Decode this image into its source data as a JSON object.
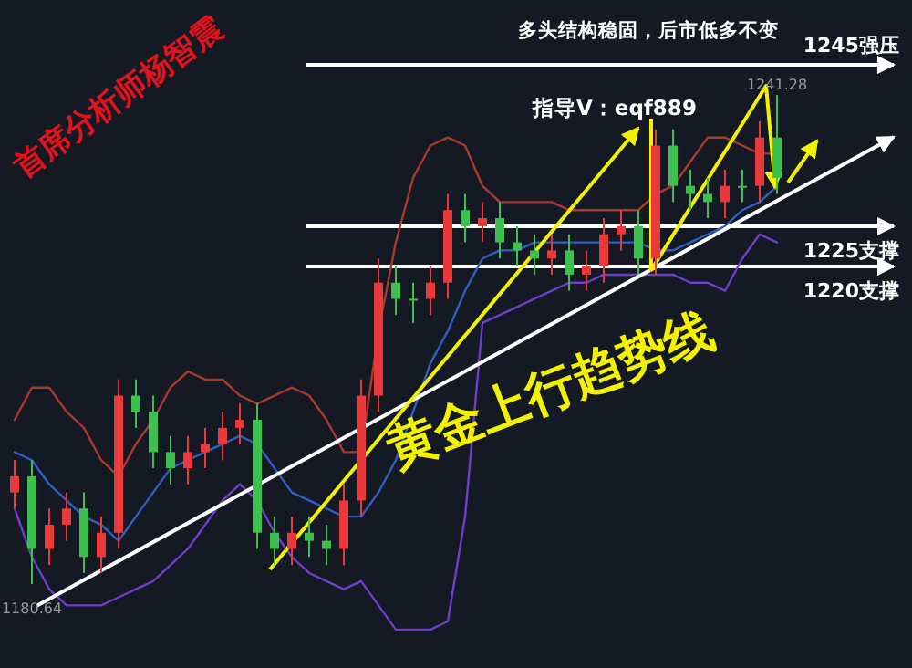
{
  "chart_data": {
    "type": "candlestick",
    "title": "多头结构稳固，后市低多不变",
    "subtitle": "指导V：eqf889",
    "categories": [
      null,
      null,
      null,
      null,
      null,
      null,
      null,
      null,
      null,
      null,
      null,
      null,
      null,
      null,
      null,
      null,
      null,
      null,
      null,
      null,
      null,
      null,
      null,
      null,
      null,
      null,
      null,
      null,
      null,
      null,
      null,
      null,
      null,
      null,
      null,
      null,
      null,
      null,
      null,
      null,
      null,
      null,
      null,
      null,
      null
    ],
    "ohlc": [
      [
        1192,
        1196,
        1190,
        1194
      ],
      [
        1194,
        1196,
        1180.64,
        1185
      ],
      [
        1185,
        1190,
        1183,
        1188
      ],
      [
        1188,
        1192,
        1186,
        1190
      ],
      [
        1190,
        1192,
        1182,
        1184
      ],
      [
        1184,
        1189,
        1182,
        1187
      ],
      [
        1187,
        1206,
        1185,
        1204
      ],
      [
        1204,
        1206,
        1200,
        1202
      ],
      [
        1202,
        1204,
        1195,
        1197
      ],
      [
        1197,
        1199,
        1193,
        1195
      ],
      [
        1195,
        1199,
        1193,
        1197
      ],
      [
        1197,
        1200,
        1195,
        1198
      ],
      [
        1198,
        1202,
        1196,
        1200
      ],
      [
        1200,
        1203,
        1198,
        1201
      ],
      [
        1201,
        1203,
        1185,
        1187
      ],
      [
        1187,
        1189,
        1183,
        1185
      ],
      [
        1185,
        1189,
        1183,
        1187
      ],
      [
        1187,
        1189,
        1184,
        1186
      ],
      [
        1186,
        1188,
        1183,
        1185
      ],
      [
        1185,
        1193,
        1183,
        1191
      ],
      [
        1191,
        1206,
        1189,
        1204
      ],
      [
        1204,
        1221,
        1202,
        1218
      ],
      [
        1218,
        1220,
        1214,
        1216
      ],
      [
        1216,
        1218,
        1213,
        1216
      ],
      [
        1216,
        1220,
        1214,
        1218
      ],
      [
        1218,
        1229,
        1216,
        1227
      ],
      [
        1227,
        1229,
        1223,
        1225
      ],
      [
        1225,
        1228,
        1223,
        1226
      ],
      [
        1226,
        1228,
        1221,
        1223
      ],
      [
        1223,
        1225,
        1220,
        1222
      ],
      [
        1222,
        1224,
        1219,
        1221
      ],
      [
        1221,
        1224,
        1219,
        1222
      ],
      [
        1222,
        1224,
        1217,
        1219
      ],
      [
        1219,
        1222,
        1217,
        1220
      ],
      [
        1220,
        1226,
        1218,
        1224
      ],
      [
        1224,
        1227,
        1222,
        1225
      ],
      [
        1225,
        1227,
        1219,
        1221
      ],
      [
        1221,
        1237,
        1219,
        1235
      ],
      [
        1235,
        1237,
        1228,
        1230
      ],
      [
        1230,
        1232,
        1227,
        1229
      ],
      [
        1229,
        1231,
        1226,
        1228
      ],
      [
        1228,
        1232,
        1226,
        1230
      ],
      [
        1230,
        1232,
        1228,
        1230
      ],
      [
        1230,
        1238,
        1228,
        1236
      ],
      [
        1236,
        1241.28,
        1229,
        1231
      ]
    ],
    "colors": [
      "#e8393b",
      "#3fbf4f",
      "#e8393b",
      "#e8393b",
      "#3fbf4f",
      "#e8393b",
      "#e8393b",
      "#3fbf4f",
      "#3fbf4f",
      "#3fbf4f",
      "#e8393b",
      "#e8393b",
      "#e8393b",
      "#e8393b",
      "#3fbf4f",
      "#3fbf4f",
      "#e8393b",
      "#3fbf4f",
      "#3fbf4f",
      "#e8393b",
      "#e8393b",
      "#e8393b",
      "#3fbf4f",
      "#3fbf4f",
      "#e8393b",
      "#e8393b",
      "#3fbf4f",
      "#e8393b",
      "#3fbf4f",
      "#3fbf4f",
      "#3fbf4f",
      "#e8393b",
      "#3fbf4f",
      "#e8393b",
      "#e8393b",
      "#e8393b",
      "#3fbf4f",
      "#e8393b",
      "#3fbf4f",
      "#3fbf4f",
      "#3fbf4f",
      "#e8393b",
      "#3fbf4f",
      "#e8393b",
      "#3fbf4f"
    ],
    "series": [
      {
        "type": "line",
        "color": "#a83a2c",
        "values": [
          1201,
          1205,
          1205,
          1202,
          1200,
          1196,
          1194,
          1198,
          1201,
          1205,
          1207,
          1206,
          1206,
          1204,
          1203,
          1204,
          1205,
          1204,
          1201,
          1197,
          1197,
          1212,
          1223,
          1231,
          1235,
          1236,
          1235,
          1230,
          1228,
          1228,
          1228,
          1228,
          1227,
          1227,
          1227,
          1227,
          1227,
          1229,
          1230,
          1233,
          1236,
          1236,
          1235,
          1234,
          1234
        ]
      },
      {
        "type": "line",
        "color": "#2f5fc0",
        "values": [
          1197,
          1196,
          1193,
          1191,
          1189,
          1188,
          1186,
          1189,
          1192,
          1195,
          1196,
          1197,
          1198,
          1199,
          1198,
          1195,
          1192,
          1191,
          1190,
          1189,
          1189,
          1192,
          1196,
          1202,
          1208,
          1212,
          1217,
          1221,
          1222,
          1222,
          1223,
          1223,
          1223,
          1223,
          1223,
          1223,
          1223,
          1222,
          1222,
          1223,
          1224,
          1225,
          1227,
          1228,
          1230
        ]
      },
      {
        "type": "line",
        "color": "#6b3fc8",
        "values": [
          1190,
          1184,
          1180,
          1178,
          1178,
          1178,
          1179,
          1180,
          1181,
          1183,
          1185,
          1188,
          1191,
          1193,
          1191,
          1187,
          1184,
          1182,
          1181,
          1180,
          1181,
          1178,
          1175,
          1175,
          1175,
          1176,
          1189,
          1213,
          1214,
          1215,
          1216,
          1217,
          1218,
          1218,
          1219,
          1219,
          1219,
          1219,
          1219,
          1218,
          1218,
          1217,
          1221,
          1224,
          1223
        ]
      }
    ],
    "ref_lines": [
      {
        "axis": "y",
        "value": 1245,
        "label": "1245强压",
        "color": "#ffffff"
      },
      {
        "axis": "y",
        "value": 1225,
        "label": "1225支撑",
        "color": "#ffffff"
      },
      {
        "axis": "y",
        "value": 1220,
        "label": "1220支撑",
        "color": "#ffffff"
      }
    ],
    "annotations": [
      {
        "text": "1241.28",
        "y": 1241.28
      },
      {
        "text": "1180.64",
        "y": 1180.64
      },
      "黄金上行趋势线",
      "首席分析师杨智震"
    ]
  }
}
